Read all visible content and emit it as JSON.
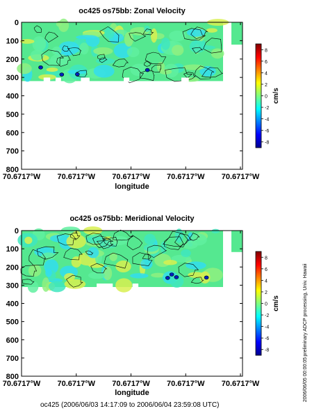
{
  "chart_data": [
    {
      "type": "heatmap",
      "title": "oc425 os75bb: Zonal Velocity",
      "xlabel": "longitude",
      "ylabel": "",
      "x_ticks": [
        "70.6717°W",
        "70.6717°W",
        "70.6717°W",
        "70.6717°W",
        "70.6717°W"
      ],
      "y_ticks": [
        0,
        100,
        200,
        300,
        400,
        500,
        600,
        700,
        800
      ],
      "ylim": [
        800,
        0
      ],
      "colorbar": {
        "label": "cm/s",
        "ticks": [
          8,
          6,
          4,
          2,
          0,
          -2,
          -4,
          -6,
          -8
        ],
        "range": [
          -9,
          9
        ]
      },
      "data_depth_range": [
        0,
        320
      ],
      "seed": 7
    },
    {
      "type": "heatmap",
      "title": "oc425 os75bb: Meridional Velocity",
      "xlabel": "longitude",
      "ylabel": "",
      "x_ticks": [
        "70.6717°W",
        "70.6717°W",
        "70.6717°W",
        "70.6717°W",
        "70.6717°W"
      ],
      "y_ticks": [
        0,
        100,
        200,
        300,
        400,
        500,
        600,
        700,
        800
      ],
      "ylim": [
        800,
        0
      ],
      "colorbar": {
        "label": "cm/s",
        "ticks": [
          8,
          6,
          4,
          2,
          0,
          -2,
          -4,
          -6,
          -8
        ],
        "range": [
          -9,
          9
        ]
      },
      "data_depth_range": [
        0,
        310
      ],
      "seed": 19
    }
  ],
  "footer": "oc425 (2006/06/03 14:17:09 to 2006/06/04 23:59:08 UTC)",
  "side_note": "preliminary ADCP processing,   Univ. Hawaii",
  "timestamp": "2006/06/05 00:00:05",
  "colors": {
    "field": "#55e890",
    "field2": "#60f0a0",
    "cyan": "#33ddee",
    "yellow": "#d8f050"
  }
}
